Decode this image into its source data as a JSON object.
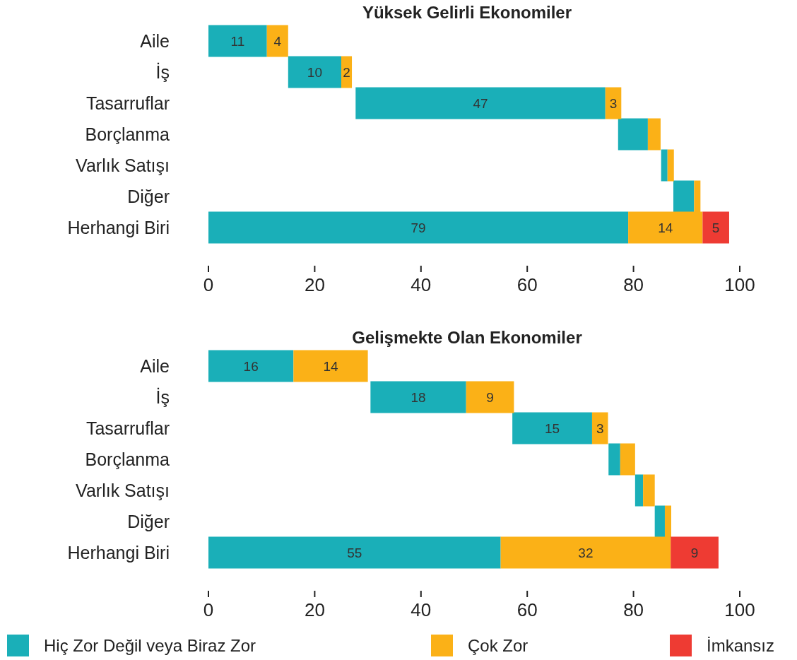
{
  "chart_data": [
    {
      "type": "bar",
      "title": "Yüksek Gelirli Ekonomiler",
      "orientation": "horizontal",
      "categories": [
        "Aile",
        "İş",
        "Tasarruflar",
        "Borçlanma",
        "Varlık Satışı",
        "Diğer",
        "Herhangi Biri"
      ],
      "series": [
        {
          "color": "#1aafb8",
          "base": [
            0,
            15,
            27.7,
            77.1,
            85.2,
            87.5,
            0
          ],
          "values": [
            11,
            10,
            47,
            5.6,
            1.2,
            3.9,
            79
          ],
          "value_labels": [
            "11",
            "10",
            "47",
            null,
            null,
            null,
            "79"
          ]
        },
        {
          "color": "#fbb117",
          "base": [
            11,
            25,
            74.7,
            82.7,
            86.4,
            91.4,
            79
          ],
          "values": [
            4,
            2,
            3,
            2.4,
            1.2,
            1.2,
            14
          ],
          "value_labels": [
            "4",
            "2",
            "3",
            null,
            null,
            null,
            "14"
          ]
        },
        {
          "color": "#ee3b33",
          "base": [
            null,
            null,
            null,
            null,
            null,
            null,
            93
          ],
          "values": [
            null,
            null,
            null,
            null,
            null,
            null,
            5
          ],
          "value_labels": [
            null,
            null,
            null,
            null,
            null,
            null,
            "5"
          ]
        }
      ],
      "xlim": [
        0,
        100
      ],
      "xticks": [
        0,
        20,
        40,
        60,
        80,
        100
      ],
      "legend": false
    },
    {
      "type": "bar",
      "title": "Gelişmekte Olan Ekonomiler",
      "orientation": "horizontal",
      "categories": [
        "Aile",
        "İş",
        "Tasarruflar",
        "Borçlanma",
        "Varlık Satışı",
        "Diğer",
        "Herhangi Biri"
      ],
      "series": [
        {
          "name": "Hiç Zor Değil veya Biraz Zor",
          "color": "#1aafb8",
          "base": [
            0,
            30.5,
            57.2,
            75.3,
            80.3,
            84,
            0
          ],
          "values": [
            16,
            18,
            15,
            2.2,
            1.5,
            1.9,
            55
          ],
          "value_labels": [
            "16",
            "18",
            "15",
            null,
            null,
            null,
            "55"
          ]
        },
        {
          "name": "Çok Zor",
          "color": "#fbb117",
          "base": [
            16,
            48.5,
            72.2,
            77.5,
            81.8,
            85.9,
            55
          ],
          "values": [
            14,
            9,
            3,
            2.8,
            2.2,
            1.2,
            32
          ],
          "value_labels": [
            "14",
            "9",
            "3",
            null,
            null,
            null,
            "32"
          ]
        },
        {
          "name": "İmkansız",
          "color": "#ee3b33",
          "base": [
            null,
            null,
            null,
            null,
            null,
            null,
            87
          ],
          "values": [
            null,
            null,
            null,
            null,
            null,
            null,
            9
          ],
          "value_labels": [
            null,
            null,
            null,
            null,
            null,
            null,
            "9"
          ]
        }
      ],
      "xlim": [
        0,
        100
      ],
      "xticks": [
        0,
        20,
        40,
        60,
        80,
        100
      ],
      "legend": "bottom"
    }
  ]
}
